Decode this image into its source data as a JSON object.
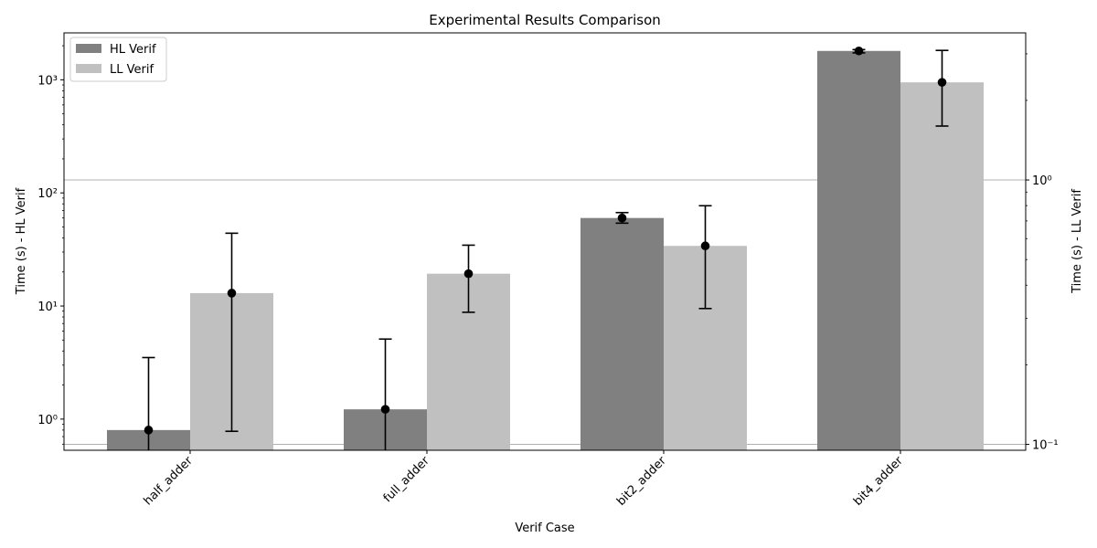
{
  "chart_data": {
    "type": "bar",
    "title": "Experimental Results Comparison",
    "xlabel": "Verif Case",
    "ylabel_left": "Time (s) - HL Verif",
    "ylabel_right": "Time (s) - LL Verif",
    "categories": [
      "half_adder",
      "full_adder",
      "bit2_adder",
      "bit4_adder"
    ],
    "y_scale": "log",
    "ylim_left": [
      0.53,
      2600
    ],
    "ylim_right": [
      0.095,
      3.6
    ],
    "left_ticks": [
      {
        "value": 1,
        "label": "10⁰"
      },
      {
        "value": 10,
        "label": "10¹"
      },
      {
        "value": 100,
        "label": "10²"
      },
      {
        "value": 1000,
        "label": "10³"
      }
    ],
    "right_ticks": [
      {
        "value": 0.1,
        "label": "10⁻¹"
      },
      {
        "value": 1,
        "label": "10⁰"
      }
    ],
    "grid": "horizontal, right-axis major ticks",
    "series": [
      {
        "name": "HL Verif",
        "color": "#808080",
        "values": [
          0.8,
          1.22,
          60,
          1800
        ],
        "error_low": [
          0.5,
          0.5,
          54,
          1730
        ],
        "error_high": [
          3.5,
          5.1,
          67,
          1850
        ]
      },
      {
        "name": "LL Verif",
        "color": "#c0c0c0",
        "values": [
          13,
          19.3,
          34,
          950
        ],
        "error_low": [
          0.78,
          8.8,
          9.5,
          390
        ],
        "error_high": [
          44,
          34.5,
          77,
          1820
        ]
      }
    ],
    "legend_position": "top-left"
  }
}
